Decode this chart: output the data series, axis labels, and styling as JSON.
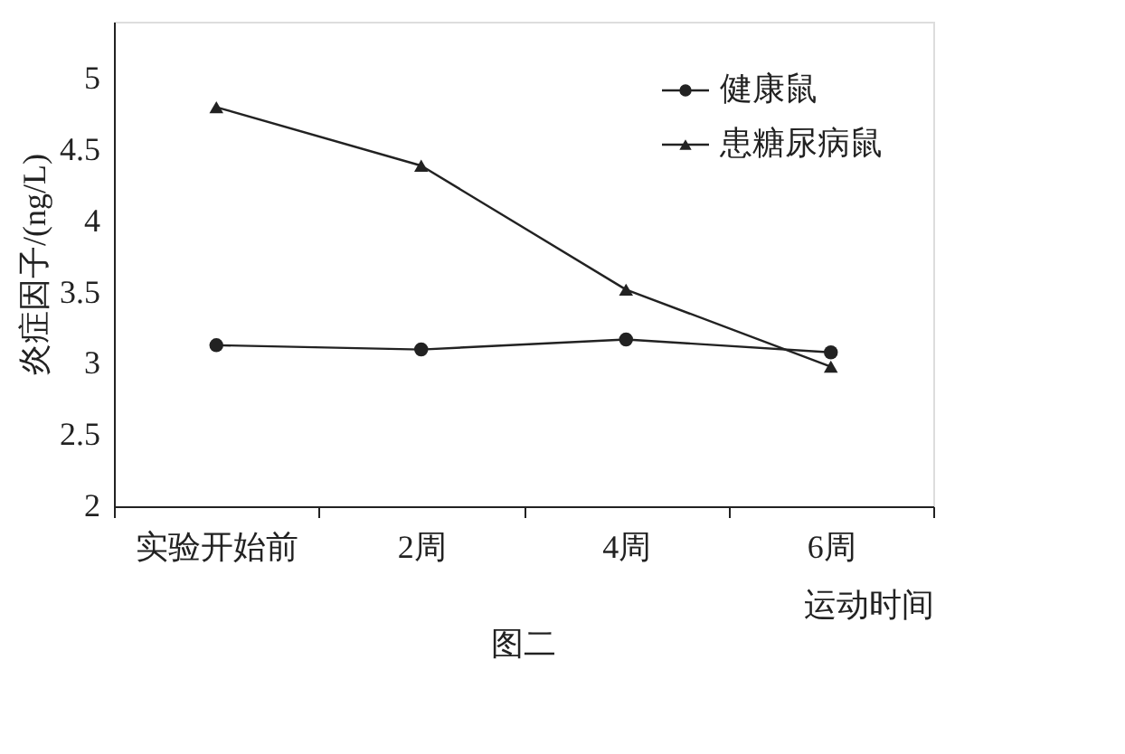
{
  "chart_data": {
    "type": "line",
    "xlabel": "运动时间",
    "ylabel": "炎症因子/(ng/L)",
    "categories": [
      "实验开始前",
      "2周",
      "4周",
      "6周"
    ],
    "series": [
      {
        "name": "健康鼠",
        "color": "#222222",
        "marker": "circle",
        "values": [
          3.13,
          3.1,
          3.17,
          3.08
        ]
      },
      {
        "name": "患糖尿病鼠",
        "color": "#222222",
        "marker": "triangle",
        "values": [
          4.8,
          4.39,
          3.52,
          2.98
        ]
      }
    ],
    "ylim": [
      2,
      5.4
    ],
    "yticks": [
      2,
      2.5,
      3,
      3.5,
      4,
      4.5,
      5
    ],
    "grid": false,
    "legend": "top right",
    "line_style": "solid",
    "annotations": [
      "图二"
    ]
  }
}
